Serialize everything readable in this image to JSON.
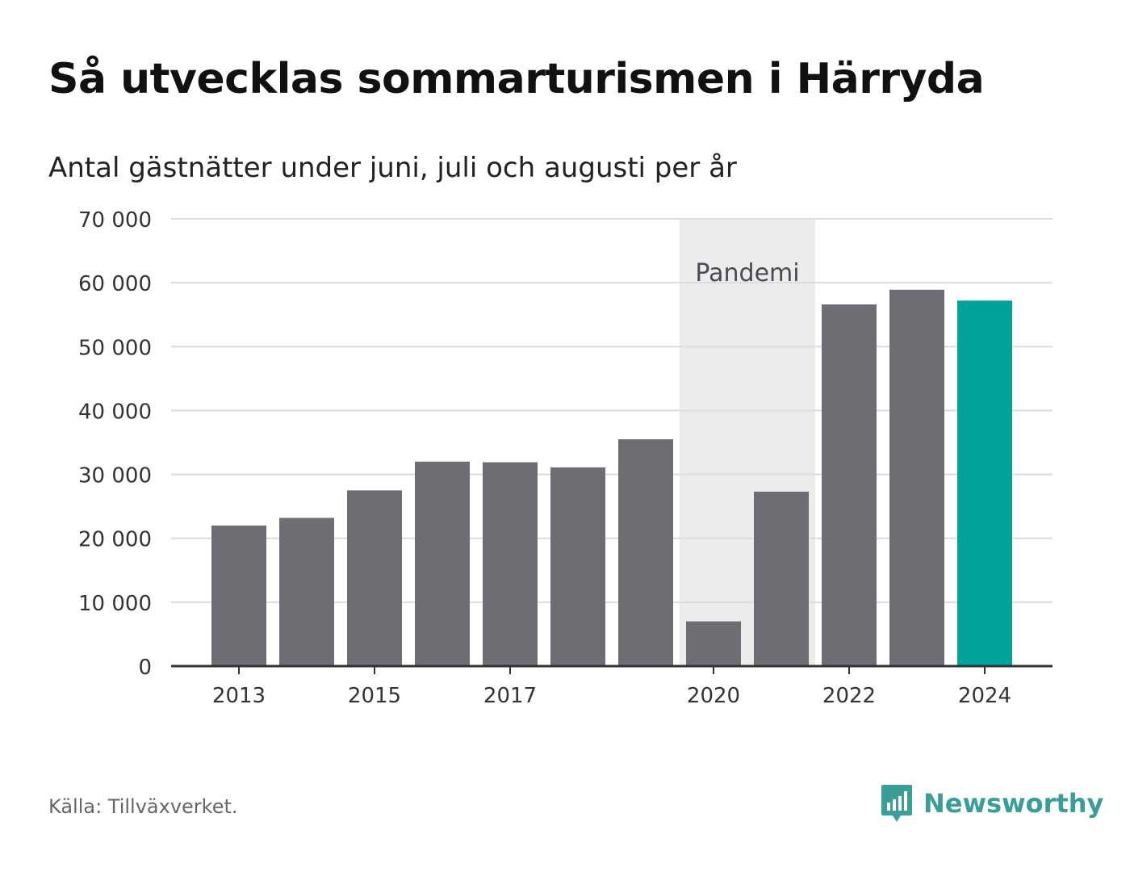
{
  "title": "Så utvecklas sommarturismen i Härryda",
  "subtitle": "Antal gästnätter under juni, juli och augusti per år",
  "source": "Källa: Tillväxverket.",
  "brand": {
    "name": "Newsworthy",
    "icon": "newsworthy-logo-icon",
    "color": "#3a9e96"
  },
  "chart_data": {
    "type": "bar",
    "categories": [
      "2013",
      "2014",
      "2015",
      "2016",
      "2017",
      "2018",
      "2019",
      "2020",
      "2021",
      "2022",
      "2023",
      "2024"
    ],
    "values": [
      22000,
      23200,
      27500,
      32000,
      31900,
      31100,
      35500,
      7000,
      27300,
      56600,
      58900,
      57200
    ],
    "x_tick_labels": [
      "2013",
      "2015",
      "2017",
      "2020",
      "2022",
      "2024"
    ],
    "ylim": [
      0,
      70000
    ],
    "y_ticks": [
      0,
      10000,
      20000,
      30000,
      40000,
      50000,
      60000,
      70000
    ],
    "y_tick_labels": [
      "0",
      "10 000",
      "20 000",
      "30 000",
      "40 000",
      "50 000",
      "60 000",
      "70 000"
    ],
    "grid": true,
    "highlight": {
      "category": "2024",
      "color": "#00a39a"
    },
    "bar_color": "#6e6d73",
    "annotation": {
      "label": "Pandemi",
      "from": "2020",
      "to": "2021",
      "color": "#ececec"
    }
  }
}
